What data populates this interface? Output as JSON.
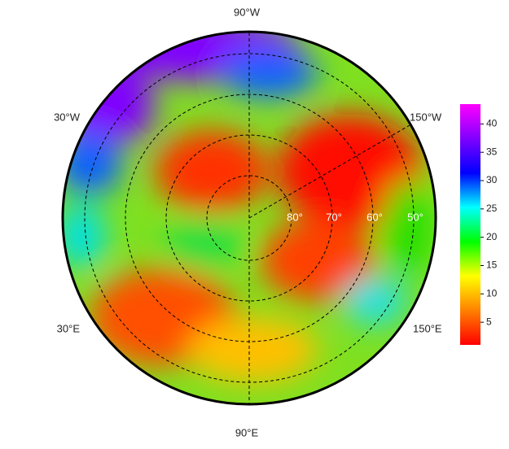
{
  "map": {
    "longitude_labels": [
      "90°W",
      "150°W",
      "30°W",
      "30°E",
      "150°E",
      "90°E"
    ],
    "latitude_labels": [
      "80°",
      "70°",
      "60°",
      "50°"
    ]
  },
  "colorbar": {
    "lim": [
      1,
      43.5
    ],
    "ticks": [
      5,
      10,
      15,
      20,
      25,
      30,
      35,
      40
    ],
    "colors": [
      "#ff0000",
      "#ff8000",
      "#ffff00",
      "#00ff00",
      "#00ffff",
      "#0000ff",
      "#8000ff",
      "#ff00ff"
    ]
  }
}
